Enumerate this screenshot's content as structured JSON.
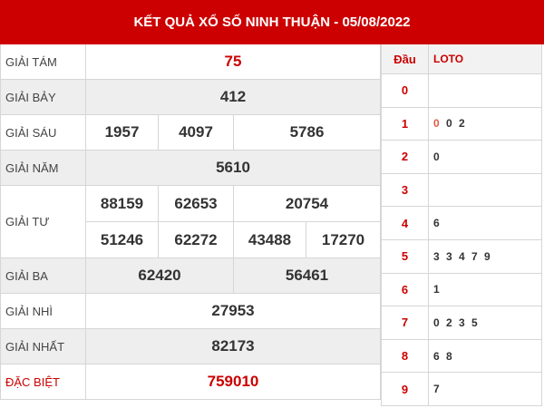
{
  "title": "KẾT QUẢ XỔ SỐ NINH THUẬN - 05/08/2022",
  "prizes": [
    {
      "label": "GIẢI TÁM",
      "values": [
        "75"
      ]
    },
    {
      "label": "GIẢI BẢY",
      "values": [
        "412"
      ]
    },
    {
      "label": "GIẢI SÁU",
      "values": [
        "1957",
        "4097",
        "5786"
      ]
    },
    {
      "label": "GIẢI NĂM",
      "values": [
        "5610"
      ]
    },
    {
      "label": "GIẢI TƯ",
      "values": [
        "88159",
        "62653",
        "20754",
        "51246",
        "62272",
        "43488",
        "17270"
      ]
    },
    {
      "label": "GIẢI BA",
      "values": [
        "62420",
        "56461"
      ]
    },
    {
      "label": "GIẢI NHÌ",
      "values": [
        "27953"
      ]
    },
    {
      "label": "GIẢI NHẤT",
      "values": [
        "82173"
      ]
    },
    {
      "label": "ĐẶC BIỆT",
      "values": [
        "759010"
      ]
    }
  ],
  "loto": {
    "head_label": "Đầu",
    "loto_label": "LOTO",
    "rows": [
      {
        "dau": "0",
        "first": "",
        "rest": ""
      },
      {
        "dau": "1",
        "first": "0",
        "rest": " 0 2"
      },
      {
        "dau": "2",
        "first": "",
        "rest": "0"
      },
      {
        "dau": "3",
        "first": "",
        "rest": ""
      },
      {
        "dau": "4",
        "first": "",
        "rest": "6"
      },
      {
        "dau": "5",
        "first": "",
        "rest": "3 3 4 7 9"
      },
      {
        "dau": "6",
        "first": "",
        "rest": "1"
      },
      {
        "dau": "7",
        "first": "",
        "rest": "0 2 3 5"
      },
      {
        "dau": "8",
        "first": "",
        "rest": "6 8"
      },
      {
        "dau": "9",
        "first": "",
        "rest": "7"
      }
    ]
  },
  "colors": {
    "header": "#cc0000",
    "special": "#cc0000",
    "alt_row": "#eeeeee"
  }
}
